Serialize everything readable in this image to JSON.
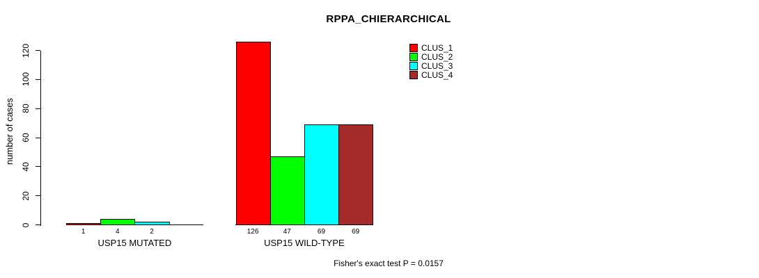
{
  "chart_data": {
    "type": "bar",
    "title": "RPPA_CHIERARCHICAL",
    "ylabel": "number of cases",
    "xlabel": "",
    "ylim": [
      0,
      120
    ],
    "yticks": [
      0,
      20,
      40,
      60,
      80,
      100,
      120
    ],
    "grid": false,
    "legend_position": "top-right",
    "categories": [
      "USP15 MUTATED",
      "USP15 WILD-TYPE"
    ],
    "series": [
      {
        "name": "CLUS_1",
        "color": "#ff0000",
        "values": [
          1,
          126
        ]
      },
      {
        "name": "CLUS_2",
        "color": "#00ff00",
        "values": [
          4,
          47
        ]
      },
      {
        "name": "CLUS_3",
        "color": "#00ffff",
        "values": [
          2,
          69
        ]
      },
      {
        "name": "CLUS_4",
        "color": "#a52a2a",
        "values": [
          0,
          69
        ]
      }
    ],
    "bar_value_labels": [
      [
        "1",
        "4",
        "2",
        ""
      ],
      [
        "126",
        "47",
        "69",
        "69"
      ]
    ],
    "annotation": "Fisher's exact test P = 0.0157",
    "colors": {
      "background": "#ffffff",
      "axis": "#000000",
      "text": "#000000"
    }
  }
}
